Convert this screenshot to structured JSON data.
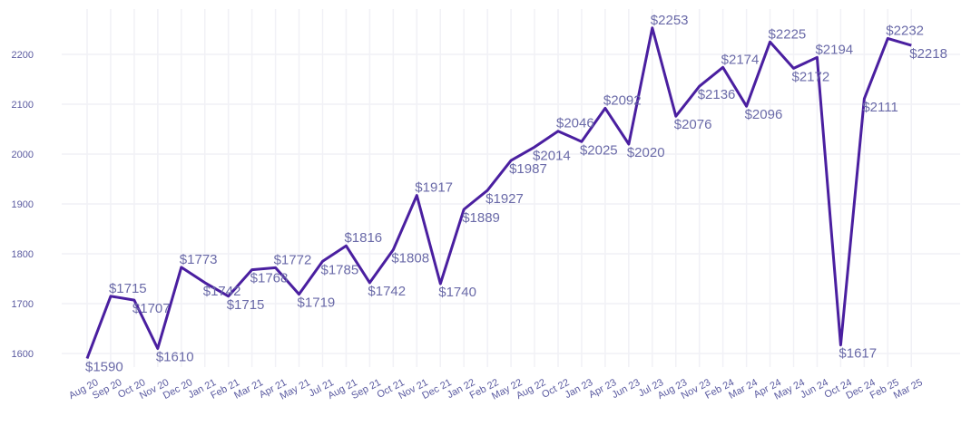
{
  "chart_data": {
    "type": "line",
    "title": "",
    "xlabel": "",
    "ylabel": "",
    "ylim": [
      1570,
      2290
    ],
    "y_ticks": [
      1600,
      1700,
      1800,
      1900,
      2000,
      2100,
      2200
    ],
    "grid": true,
    "legend": "none",
    "line_color": "#4a1fa0",
    "label_color": "#6a6aa8",
    "tick_color": "#5a5aa0",
    "grid_color": "#f1f1f6",
    "label_prefix": "$",
    "categories": [
      "Aug 20",
      "Sep 20",
      "Oct 20",
      "Nov 20",
      "Dec 20",
      "Jan 21",
      "Feb 21",
      "Mar 21",
      "Apr 21",
      "May 21",
      "Jul 21",
      "Aug 21",
      "Sep 21",
      "Oct 21",
      "Nov 21",
      "Dec 21",
      "Jan 22",
      "Feb 22",
      "May 22",
      "Aug 22",
      "Oct 22",
      "Jan 23",
      "Apr 23",
      "Jun 23",
      "Jul 23",
      "Aug 23",
      "Nov 23",
      "Feb 24",
      "Mar 24",
      "Apr 24",
      "May 24",
      "Jun 24",
      "Oct 24",
      "Dec 24",
      "Feb 25",
      "Mar 25"
    ],
    "values": [
      1590,
      1715,
      1707,
      1610,
      1773,
      1742,
      1715,
      1768,
      1772,
      1719,
      1785,
      1816,
      1742,
      1808,
      1917,
      1740,
      1889,
      1927,
      1987,
      2014,
      2046,
      2025,
      2092,
      2020,
      2253,
      2076,
      2136,
      2174,
      2096,
      2225,
      2172,
      2194,
      1617,
      2111,
      2232,
      2218
    ]
  }
}
